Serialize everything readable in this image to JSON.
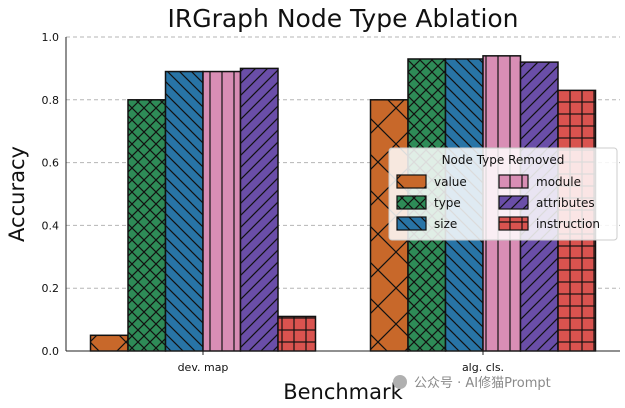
{
  "chart_data": {
    "type": "bar",
    "title": "IRGraph Node Type Ablation",
    "xlabel": "Benchmark",
    "ylabel": "Accuracy",
    "ylim": [
      0,
      1.0
    ],
    "yticks": [
      "0.0",
      "0.2",
      "0.4",
      "0.6",
      "0.8",
      "1.0"
    ],
    "grid": "y-dashed",
    "categories": [
      "dev. map",
      "alg. cls."
    ],
    "legend": {
      "title": "Node Type Removed",
      "placement": "center-right",
      "columns": 2
    },
    "series": [
      {
        "name": "value",
        "color": "#c8682a",
        "hatch": "x",
        "values": [
          0.05,
          0.8
        ]
      },
      {
        "name": "type",
        "color": "#2e8b57",
        "hatch": "xx",
        "values": [
          0.8,
          0.93
        ]
      },
      {
        "name": "size",
        "color": "#2874a6",
        "hatch": "\\\\",
        "values": [
          0.89,
          0.93
        ]
      },
      {
        "name": "module",
        "color": "#d98eb5",
        "hatch": "|",
        "values": [
          0.89,
          0.94
        ]
      },
      {
        "name": "attributes",
        "color": "#6a4ea8",
        "hatch": "//",
        "values": [
          0.9,
          0.92
        ]
      },
      {
        "name": "instruction",
        "color": "#d9534f",
        "hatch": "+",
        "values": [
          0.11,
          0.83
        ]
      }
    ]
  },
  "watermark": "公众号 · AI修猫Prompt"
}
